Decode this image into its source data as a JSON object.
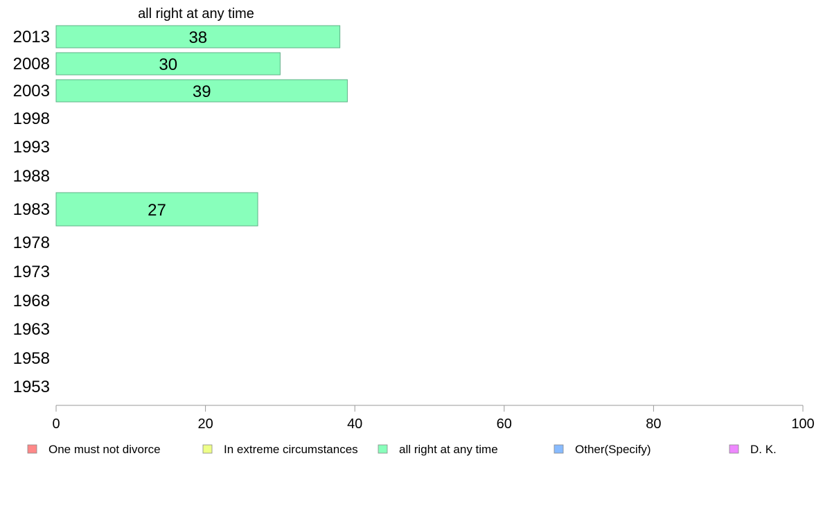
{
  "chart_data": {
    "type": "bar",
    "orientation": "horizontal",
    "title": "all right at any time",
    "categories": [
      "2013",
      "2008",
      "2003",
      "1998",
      "1993",
      "1988",
      "1983",
      "1978",
      "1973",
      "1968",
      "1963",
      "1958",
      "1953"
    ],
    "series": [
      {
        "name": "all right at any time",
        "values": [
          38,
          30,
          39,
          null,
          null,
          null,
          27,
          null,
          null,
          null,
          null,
          null,
          null
        ],
        "color": "#88ffbb"
      }
    ],
    "xlim": [
      0,
      100
    ],
    "xticks": [
      "0",
      "20",
      "40",
      "60",
      "80",
      "100"
    ],
    "xtick_values": [
      0,
      20,
      40,
      60,
      80,
      100
    ],
    "grid": false,
    "legend_position": "bottom",
    "legend": [
      {
        "label": "One must not divorce",
        "color": "#ff8888"
      },
      {
        "label": "In extreme circumstances",
        "color": "#eeff88"
      },
      {
        "label": "all right at any time",
        "color": "#88ffbb"
      },
      {
        "label": "Other(Specify)",
        "color": "#88bbff"
      },
      {
        "label": "D. K.",
        "color": "#ee88ff"
      }
    ]
  }
}
